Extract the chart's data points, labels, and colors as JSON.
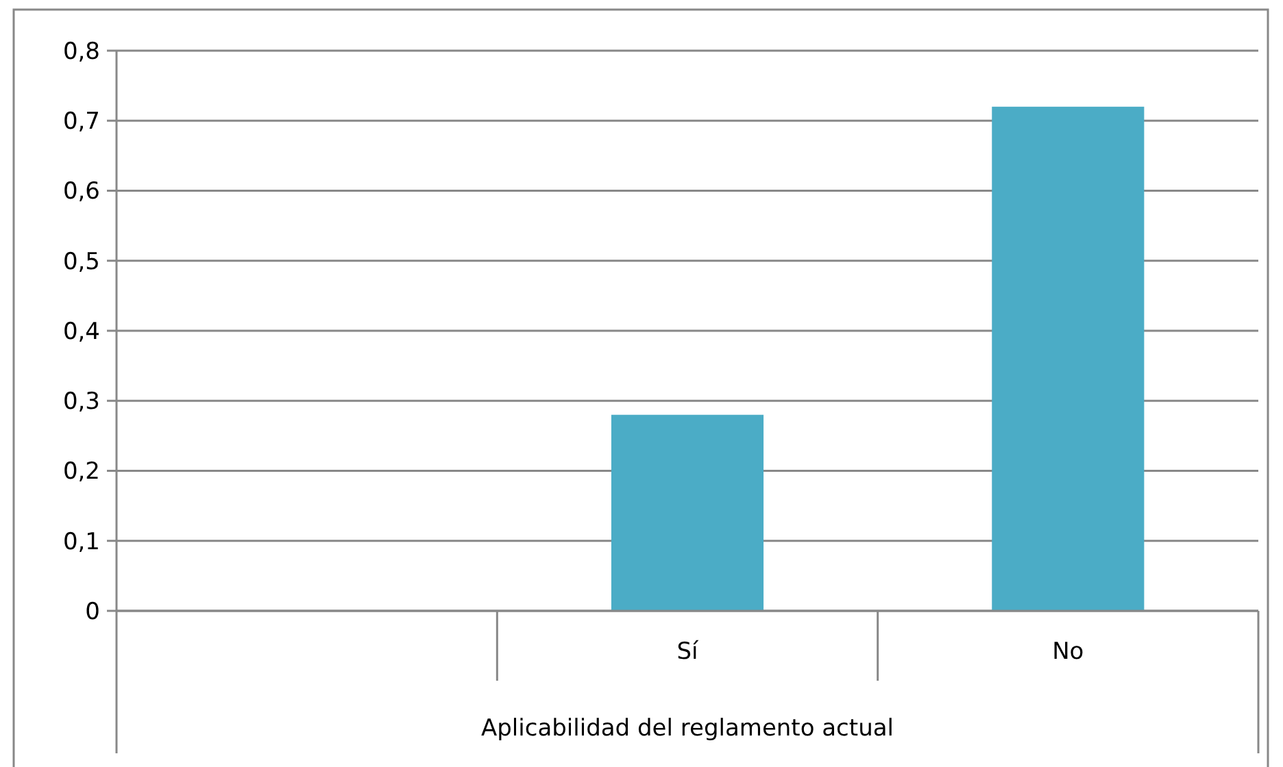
{
  "chart_data": {
    "type": "bar",
    "xlabel": "Aplicabilidad del reglamento actual",
    "categories": [
      null,
      "Sí",
      "No"
    ],
    "values": [
      null,
      0.28,
      0.72
    ],
    "color": "#4bacc6",
    "ylim": [
      0,
      0.8
    ],
    "yticks": [
      0,
      {
        "value": 0.1,
        "label": "0,1"
      },
      {
        "value": 0.2,
        "label": "0,2"
      },
      {
        "value": 0.3,
        "label": "0,3"
      },
      {
        "value": 0.4,
        "label": "0,4"
      },
      {
        "value": 0.5,
        "label": "0,5"
      },
      {
        "value": 0.6,
        "label": "0,6"
      },
      {
        "value": 0.7,
        "label": "0,7"
      },
      {
        "value": 0.8,
        "label": "0,8"
      }
    ],
    "grid": "y"
  }
}
